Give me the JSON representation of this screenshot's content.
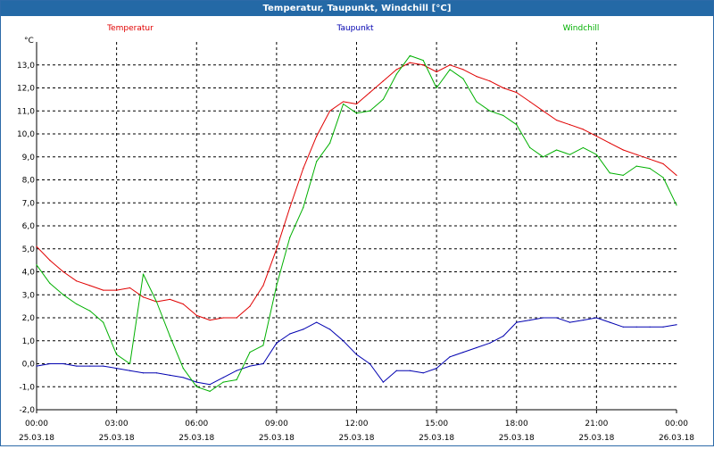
{
  "window": {
    "title": "Temperatur, Taupunkt, Windchill [°C]"
  },
  "chart_data": {
    "type": "line",
    "title": "Temperatur, Taupunkt, Windchill [°C]",
    "ylabel": "°C",
    "xlabel": "",
    "ylim": [
      -2.0,
      14.0
    ],
    "xlim": [
      0,
      24
    ],
    "y_ticks": [
      -2.0,
      -1.0,
      0.0,
      1.0,
      2.0,
      3.0,
      4.0,
      5.0,
      6.0,
      7.0,
      8.0,
      9.0,
      10.0,
      11.0,
      12.0,
      13.0
    ],
    "y_tick_labels": [
      "-2,0",
      "-1,0",
      "0,0",
      "1,0",
      "2,0",
      "3,0",
      "4,0",
      "5,0",
      "6,0",
      "7,0",
      "8,0",
      "9,0",
      "10,0",
      "11,0",
      "12,0",
      "13,0"
    ],
    "x_ticks": [
      {
        "hour": 0,
        "time": "00:00",
        "date": "25.03.18"
      },
      {
        "hour": 3,
        "time": "03:00",
        "date": "25.03.18"
      },
      {
        "hour": 6,
        "time": "06:00",
        "date": "25.03.18"
      },
      {
        "hour": 9,
        "time": "09:00",
        "date": "25.03.18"
      },
      {
        "hour": 12,
        "time": "12:00",
        "date": "25.03.18"
      },
      {
        "hour": 15,
        "time": "15:00",
        "date": "25.03.18"
      },
      {
        "hour": 18,
        "time": "18:00",
        "date": "25.03.18"
      },
      {
        "hour": 21,
        "time": "21:00",
        "date": "25.03.18"
      },
      {
        "hour": 24,
        "time": "00:00",
        "date": "26.03.18"
      }
    ],
    "grid": true,
    "legend_position": "top",
    "series": [
      {
        "name": "Temperatur",
        "color": "#e00000",
        "x": [
          0,
          0.5,
          1,
          1.5,
          2,
          2.5,
          3,
          3.5,
          4,
          4.5,
          5,
          5.5,
          6,
          6.5,
          7,
          7.5,
          8,
          8.5,
          9,
          9.5,
          10,
          10.5,
          11,
          11.5,
          12,
          12.5,
          13,
          13.5,
          14,
          14.5,
          15,
          15.5,
          16,
          16.5,
          17,
          17.5,
          18,
          18.5,
          19,
          19.5,
          20,
          20.5,
          21,
          21.5,
          22,
          22.5,
          23,
          23.5,
          24
        ],
        "values": [
          5.1,
          4.5,
          4.0,
          3.6,
          3.4,
          3.2,
          3.2,
          3.3,
          2.9,
          2.7,
          2.8,
          2.6,
          2.1,
          1.9,
          2.0,
          2.0,
          2.5,
          3.4,
          5.0,
          6.8,
          8.5,
          9.9,
          11.0,
          11.4,
          11.3,
          11.8,
          12.3,
          12.8,
          13.1,
          13.0,
          12.7,
          13.0,
          12.8,
          12.5,
          12.3,
          12.0,
          11.8,
          11.4,
          11.0,
          10.6,
          10.4,
          10.2,
          9.9,
          9.6,
          9.3,
          9.1,
          8.9,
          8.7,
          8.2
        ]
      },
      {
        "name": "Taupunkt",
        "color": "#0000b0",
        "x": [
          0,
          0.5,
          1,
          1.5,
          2,
          2.5,
          3,
          3.5,
          4,
          4.5,
          5,
          5.5,
          6,
          6.5,
          7,
          7.5,
          8,
          8.5,
          9,
          9.5,
          10,
          10.5,
          11,
          11.5,
          12,
          12.5,
          13,
          13.5,
          14,
          14.5,
          15,
          15.5,
          16,
          16.5,
          17,
          17.5,
          18,
          18.5,
          19,
          19.5,
          20,
          20.5,
          21,
          21.5,
          22,
          22.5,
          23,
          23.5,
          24
        ],
        "values": [
          -0.1,
          0.0,
          0.0,
          -0.1,
          -0.1,
          -0.1,
          -0.2,
          -0.3,
          -0.4,
          -0.4,
          -0.5,
          -0.6,
          -0.8,
          -0.9,
          -0.6,
          -0.3,
          -0.1,
          0.0,
          0.9,
          1.3,
          1.5,
          1.8,
          1.5,
          1.0,
          0.4,
          0.0,
          -0.8,
          -0.3,
          -0.3,
          -0.4,
          -0.2,
          0.3,
          0.5,
          0.7,
          0.9,
          1.2,
          1.8,
          1.9,
          2.0,
          2.0,
          1.8,
          1.9,
          2.0,
          1.8,
          1.6,
          1.6,
          1.6,
          1.6,
          1.7
        ]
      },
      {
        "name": "Windchill",
        "color": "#00b000",
        "x": [
          0,
          0.5,
          1,
          1.5,
          2,
          2.5,
          3,
          3.5,
          4,
          4.5,
          5,
          5.5,
          6,
          6.5,
          7,
          7.5,
          8,
          8.5,
          9,
          9.5,
          10,
          10.5,
          11,
          11.5,
          12,
          12.5,
          13,
          13.5,
          14,
          14.5,
          15,
          15.5,
          16,
          16.5,
          17,
          17.5,
          18,
          18.5,
          19,
          19.5,
          20,
          20.5,
          21,
          21.5,
          22,
          22.5,
          23,
          23.5,
          24
        ],
        "values": [
          4.3,
          3.5,
          3.0,
          2.6,
          2.3,
          1.8,
          0.4,
          0.0,
          3.9,
          2.7,
          1.2,
          -0.2,
          -1.0,
          -1.2,
          -0.8,
          -0.7,
          0.5,
          0.8,
          3.4,
          5.5,
          6.8,
          8.8,
          9.6,
          11.3,
          10.9,
          11.0,
          11.5,
          12.6,
          13.4,
          13.2,
          12.0,
          12.8,
          12.4,
          11.4,
          11.0,
          10.8,
          10.4,
          9.4,
          9.0,
          9.3,
          9.1,
          9.4,
          9.1,
          8.3,
          8.2,
          8.6,
          8.5,
          8.1,
          6.9
        ]
      }
    ]
  }
}
